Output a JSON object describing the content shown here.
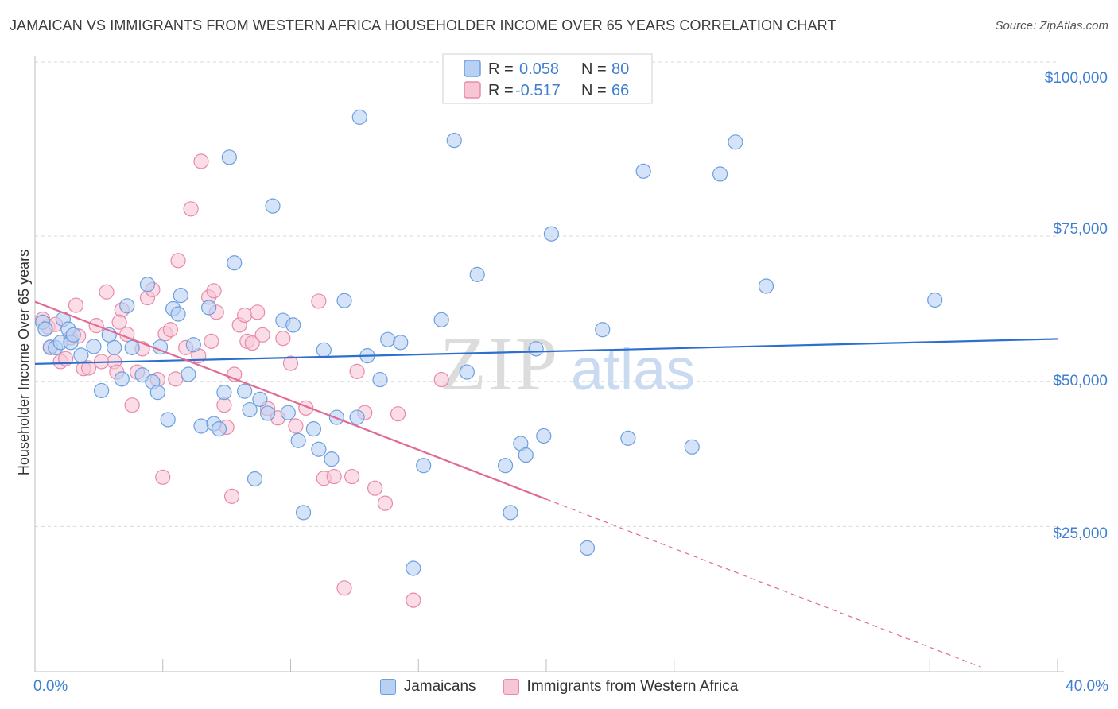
{
  "header": {
    "title": "JAMAICAN VS IMMIGRANTS FROM WESTERN AFRICA HOUSEHOLDER INCOME OVER 65 YEARS CORRELATION CHART",
    "source": "Source: ZipAtlas.com"
  },
  "watermark": {
    "zip": "ZIP",
    "atlas": "atlas"
  },
  "stats_legend": {
    "rows": [
      {
        "r_label": "R =",
        "r_value": "0.058",
        "n_label": "N =",
        "n_value": "80"
      },
      {
        "r_label": "R =",
        "r_value": "-0.517",
        "n_label": "N =",
        "n_value": "66"
      }
    ]
  },
  "bottom_legend": {
    "items": [
      {
        "label": "Jamaicans"
      },
      {
        "label": "Immigrants from Western Africa"
      }
    ]
  },
  "colors": {
    "blue_fill": "#b8d1f2",
    "blue_stroke": "#6c9fe0",
    "blue_line": "#2c6fcf",
    "pink_fill": "#f7c6d5",
    "pink_stroke": "#e88aa8",
    "pink_line": "#e06a94",
    "grid": "#d9d9d9",
    "axis_text": "#3f7fd0"
  },
  "chart_data": {
    "type": "scatter",
    "title": "JAMAICAN VS IMMIGRANTS FROM WESTERN AFRICA HOUSEHOLDER INCOME OVER 65 YEARS CORRELATION CHART",
    "xlabel": "",
    "ylabel": "Householder Income Over 65 years",
    "xlim": [
      0,
      40
    ],
    "ylim": [
      0,
      105000
    ],
    "x_tick_labels": [
      "0.0%",
      "40.0%"
    ],
    "y_ticks": [
      25000,
      50000,
      75000,
      100000
    ],
    "y_tick_labels": [
      "$25,000",
      "$50,000",
      "$75,000",
      "$100,000"
    ],
    "series": [
      {
        "name": "Jamaicans",
        "r": 0.058,
        "n": 80,
        "trend": {
          "x": [
            0,
            40
          ],
          "y": [
            53000,
            57300
          ]
        },
        "points": [
          [
            0.3,
            60200
          ],
          [
            0.4,
            59000
          ],
          [
            0.6,
            55900
          ],
          [
            0.8,
            55800
          ],
          [
            1.0,
            56700
          ],
          [
            1.1,
            60700
          ],
          [
            1.3,
            59000
          ],
          [
            1.4,
            56700
          ],
          [
            1.5,
            58000
          ],
          [
            1.8,
            54500
          ],
          [
            2.3,
            56000
          ],
          [
            2.6,
            48400
          ],
          [
            2.9,
            58000
          ],
          [
            3.1,
            55800
          ],
          [
            3.4,
            50400
          ],
          [
            3.6,
            63000
          ],
          [
            3.8,
            55800
          ],
          [
            4.2,
            51100
          ],
          [
            4.4,
            66700
          ],
          [
            4.6,
            49900
          ],
          [
            4.8,
            48100
          ],
          [
            4.9,
            55900
          ],
          [
            5.2,
            43400
          ],
          [
            5.4,
            62500
          ],
          [
            5.6,
            61600
          ],
          [
            5.7,
            64800
          ],
          [
            6.0,
            51200
          ],
          [
            6.2,
            56300
          ],
          [
            6.5,
            42300
          ],
          [
            6.8,
            62700
          ],
          [
            7.0,
            42700
          ],
          [
            7.2,
            41800
          ],
          [
            7.4,
            48100
          ],
          [
            7.6,
            88600
          ],
          [
            7.8,
            70400
          ],
          [
            8.2,
            48300
          ],
          [
            8.4,
            45100
          ],
          [
            8.6,
            33200
          ],
          [
            8.8,
            46900
          ],
          [
            9.1,
            44500
          ],
          [
            9.3,
            80200
          ],
          [
            9.7,
            60500
          ],
          [
            9.9,
            44600
          ],
          [
            10.1,
            59700
          ],
          [
            10.3,
            39800
          ],
          [
            10.5,
            27400
          ],
          [
            10.9,
            41800
          ],
          [
            11.1,
            38300
          ],
          [
            11.3,
            55400
          ],
          [
            11.6,
            36600
          ],
          [
            11.8,
            43800
          ],
          [
            12.1,
            63900
          ],
          [
            12.6,
            43800
          ],
          [
            12.7,
            95500
          ],
          [
            13.0,
            54400
          ],
          [
            13.5,
            50300
          ],
          [
            13.8,
            57200
          ],
          [
            14.3,
            56700
          ],
          [
            14.8,
            17800
          ],
          [
            15.2,
            35500
          ],
          [
            15.9,
            60600
          ],
          [
            16.4,
            91500
          ],
          [
            16.9,
            51600
          ],
          [
            17.3,
            68400
          ],
          [
            18.4,
            35500
          ],
          [
            18.6,
            27400
          ],
          [
            19.0,
            39300
          ],
          [
            19.2,
            37300
          ],
          [
            19.6,
            55600
          ],
          [
            19.9,
            40600
          ],
          [
            20.2,
            75400
          ],
          [
            21.6,
            21300
          ],
          [
            22.2,
            58900
          ],
          [
            23.2,
            40200
          ],
          [
            23.8,
            86200
          ],
          [
            25.7,
            38700
          ],
          [
            26.8,
            85700
          ],
          [
            27.4,
            91200
          ],
          [
            28.6,
            66400
          ],
          [
            35.2,
            64000
          ]
        ]
      },
      {
        "name": "Immigrants from Western Africa",
        "r": -0.517,
        "n": 66,
        "trend": {
          "x": [
            0,
            20
          ],
          "y": [
            63700,
            29700
          ]
        },
        "trend_dashed": {
          "x": [
            20,
            37
          ],
          "y": [
            29700,
            800
          ]
        },
        "points": [
          [
            0.3,
            60700
          ],
          [
            0.5,
            59400
          ],
          [
            0.6,
            55800
          ],
          [
            0.8,
            59800
          ],
          [
            1.0,
            53400
          ],
          [
            1.2,
            53900
          ],
          [
            1.4,
            57500
          ],
          [
            1.6,
            63100
          ],
          [
            1.7,
            57800
          ],
          [
            1.9,
            52200
          ],
          [
            2.1,
            52300
          ],
          [
            2.4,
            59600
          ],
          [
            2.6,
            53400
          ],
          [
            2.8,
            65400
          ],
          [
            3.1,
            53400
          ],
          [
            3.2,
            51600
          ],
          [
            3.4,
            62300
          ],
          [
            3.6,
            58100
          ],
          [
            3.8,
            45900
          ],
          [
            4.0,
            51600
          ],
          [
            4.2,
            55600
          ],
          [
            4.4,
            64400
          ],
          [
            4.6,
            65800
          ],
          [
            4.8,
            50300
          ],
          [
            5.0,
            33500
          ],
          [
            5.1,
            58200
          ],
          [
            5.3,
            58900
          ],
          [
            5.5,
            50400
          ],
          [
            5.6,
            70800
          ],
          [
            5.9,
            55800
          ],
          [
            6.1,
            79700
          ],
          [
            6.4,
            54400
          ],
          [
            6.5,
            87900
          ],
          [
            6.8,
            64500
          ],
          [
            7.0,
            65600
          ],
          [
            7.1,
            61900
          ],
          [
            7.4,
            45900
          ],
          [
            7.5,
            42100
          ],
          [
            7.7,
            30200
          ],
          [
            7.8,
            51200
          ],
          [
            8.0,
            59700
          ],
          [
            8.2,
            61400
          ],
          [
            8.3,
            56900
          ],
          [
            8.5,
            56600
          ],
          [
            8.7,
            61900
          ],
          [
            8.9,
            58000
          ],
          [
            9.1,
            45300
          ],
          [
            9.5,
            43700
          ],
          [
            9.7,
            57400
          ],
          [
            10.0,
            53100
          ],
          [
            10.2,
            42300
          ],
          [
            10.6,
            45400
          ],
          [
            11.1,
            63800
          ],
          [
            11.3,
            33300
          ],
          [
            11.7,
            33600
          ],
          [
            12.1,
            14400
          ],
          [
            12.4,
            33600
          ],
          [
            12.6,
            51700
          ],
          [
            12.9,
            44600
          ],
          [
            13.3,
            31600
          ],
          [
            13.7,
            29000
          ],
          [
            14.2,
            44400
          ],
          [
            14.8,
            12300
          ],
          [
            15.9,
            50300
          ],
          [
            6.9,
            56900
          ],
          [
            3.3,
            60200
          ]
        ]
      }
    ]
  }
}
